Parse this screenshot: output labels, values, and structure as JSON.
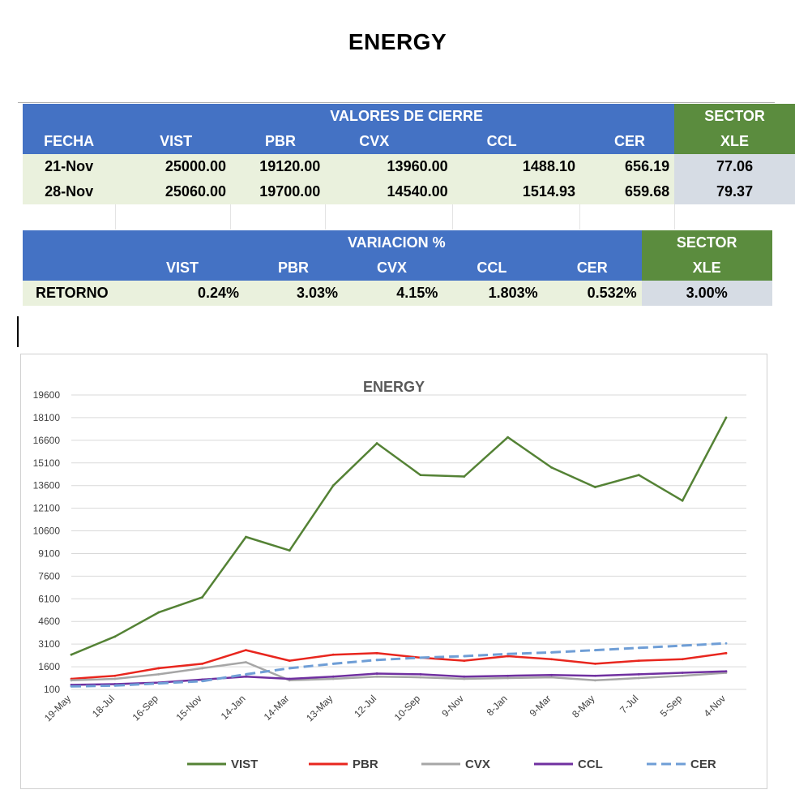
{
  "page": {
    "title": "ENERGY"
  },
  "table1": {
    "group_header": "VALORES DE CIERRE",
    "sector_header": "SECTOR",
    "columns": [
      "FECHA",
      "VIST",
      "PBR",
      "CVX",
      "CCL",
      "CER",
      "XLE"
    ],
    "rows": [
      {
        "fecha": "21-Nov",
        "vist": "25000.00",
        "pbr": "19120.00",
        "cvx": "13960.00",
        "ccl": "1488.10",
        "cer": "656.19",
        "xle": "77.06"
      },
      {
        "fecha": "28-Nov",
        "vist": "25060.00",
        "pbr": "19700.00",
        "cvx": "14540.00",
        "ccl": "1514.93",
        "cer": "659.68",
        "xle": "79.37"
      }
    ]
  },
  "table2": {
    "group_header": "VARIACION %",
    "sector_header": "SECTOR",
    "columns": [
      "VIST",
      "PBR",
      "CVX",
      "CCL",
      "CER",
      "XLE"
    ],
    "row": {
      "label": "RETORNO",
      "vist": "0.24%",
      "pbr": "3.03%",
      "cvx": "4.15%",
      "ccl": "1.803%",
      "cer": "0.532%",
      "xle": "3.00%"
    }
  },
  "chart_data": {
    "type": "line",
    "title": "ENERGY",
    "xlabel": "",
    "ylabel": "",
    "ylim": [
      100,
      19600
    ],
    "yticks": [
      "100",
      "1600",
      "3100",
      "4600",
      "6100",
      "7600",
      "9100",
      "10600",
      "12100",
      "13600",
      "15100",
      "16600",
      "18100",
      "19600"
    ],
    "xticks": [
      "19-May",
      "18-Jul",
      "16-Sep",
      "15-Nov",
      "14-Jan",
      "14-Mar",
      "13-May",
      "12-Jul",
      "10-Sep",
      "9-Nov",
      "8-Jan",
      "9-Mar",
      "8-May",
      "7-Jul",
      "5-Sep",
      "4-Nov"
    ],
    "legend_position": "bottom",
    "x": [
      "19-May",
      "18-Jul",
      "16-Sep",
      "15-Nov",
      "14-Jan",
      "14-Mar",
      "13-May",
      "12-Jul",
      "10-Sep",
      "9-Nov",
      "8-Jan",
      "9-Mar",
      "8-May",
      "7-Jul",
      "5-Sep",
      "4-Nov"
    ],
    "series": [
      {
        "name": "VIST",
        "color": "#548235",
        "dash": false,
        "values": [
          2400,
          3600,
          5200,
          6200,
          10200,
          9300,
          13600,
          16400,
          14300,
          14200,
          16800,
          14800,
          13500,
          14300,
          12600,
          18100
        ]
      },
      {
        "name": "PBR",
        "color": "#e8261e",
        "dash": false,
        "values": [
          800,
          1000,
          1500,
          1800,
          2700,
          2000,
          2400,
          2500,
          2200,
          2000,
          2300,
          2100,
          1800,
          2000,
          2100,
          2500
        ]
      },
      {
        "name": "CVX",
        "color": "#a6a6a6",
        "dash": false,
        "values": [
          700,
          800,
          1100,
          1500,
          1900,
          700,
          800,
          950,
          900,
          800,
          850,
          900,
          700,
          850,
          1000,
          1200
        ]
      },
      {
        "name": "CCL",
        "color": "#7030a0",
        "dash": false,
        "values": [
          400,
          450,
          550,
          750,
          950,
          800,
          950,
          1150,
          1100,
          950,
          1000,
          1050,
          1000,
          1100,
          1200,
          1300
        ]
      },
      {
        "name": "CER",
        "color": "#6f9ed6",
        "dash": true,
        "values": [
          300,
          350,
          500,
          650,
          1100,
          1500,
          1800,
          2050,
          2200,
          2300,
          2450,
          2550,
          2700,
          2850,
          3000,
          3150
        ]
      }
    ]
  }
}
